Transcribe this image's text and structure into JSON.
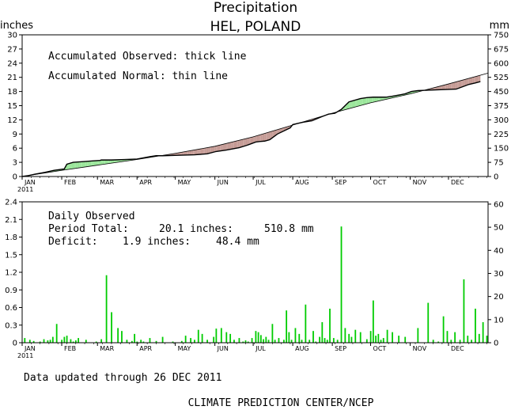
{
  "title": "Precipitation",
  "subtitle": "HEL, POLAND",
  "footer": {
    "updated": "Data updated through 26 DEC 2011",
    "credit": "CLIMATE PREDICTION CENTER/NCEP"
  },
  "chart_data": [
    {
      "type": "area",
      "title": "Precipitation",
      "subtitle": "HEL, POLAND",
      "ylabel_left": "inches",
      "ylabel_right": "mm",
      "ylim_inches": [
        0,
        30
      ],
      "yticks_inches": [
        "0",
        "3",
        "6",
        "9",
        "12",
        "15",
        "18",
        "21",
        "24",
        "27",
        "30"
      ],
      "ylim_mm": [
        0,
        750
      ],
      "yticks_mm": [
        "0",
        "75",
        "150",
        "225",
        "300",
        "375",
        "450",
        "525",
        "600",
        "675",
        "750"
      ],
      "xlim_days": [
        0,
        365
      ],
      "months": [
        "JAN",
        "FEB",
        "MAR",
        "APR",
        "MAY",
        "JUN",
        "JUL",
        "AUG",
        "SEP",
        "OCT",
        "NOV",
        "DEC"
      ],
      "year_label": "2011",
      "annotations": [
        "Accumulated Observed: thick line",
        "Accumulated Normal: thin line"
      ],
      "surplus_color": "#99e699",
      "deficit_color": "#c49a94",
      "series": [
        {
          "name": "Accumulated Observed",
          "x": [
            0,
            5,
            10,
            18,
            25,
            33,
            35,
            40,
            50,
            55,
            61,
            62,
            70,
            80,
            90,
            100,
            105,
            110,
            122,
            135,
            145,
            152,
            160,
            170,
            176,
            178,
            183,
            186,
            190,
            194,
            200,
            210,
            212,
            220,
            227,
            235,
            240,
            245,
            250,
            256,
            265,
            270,
            275,
            285,
            290,
            300,
            305,
            310,
            320,
            330,
            340,
            345,
            350,
            355,
            359
          ],
          "values": [
            0,
            0.2,
            0.5,
            0.9,
            1.3,
            1.6,
            2.6,
            3.0,
            3.2,
            3.3,
            3.4,
            3.5,
            3.5,
            3.6,
            3.7,
            4.2,
            4.4,
            4.4,
            4.5,
            4.6,
            4.8,
            5.3,
            5.6,
            6.1,
            6.6,
            6.8,
            7.3,
            7.4,
            7.5,
            7.8,
            9.0,
            10.3,
            11.0,
            11.5,
            11.8,
            12.7,
            13.2,
            13.4,
            14.2,
            15.8,
            16.5,
            16.7,
            16.8,
            16.8,
            17.0,
            17.5,
            18.0,
            18.2,
            18.3,
            18.4,
            18.5,
            19.0,
            19.5,
            19.8,
            20.1
          ]
        },
        {
          "name": "Accumulated Normal",
          "x": [
            0,
            31,
            59,
            90,
            120,
            151,
            181,
            212,
            243,
            273,
            304,
            334,
            365
          ],
          "values": [
            0,
            1.3,
            2.4,
            3.6,
            4.9,
            6.4,
            8.4,
            10.9,
            13.4,
            15.6,
            17.5,
            19.6,
            21.9
          ]
        }
      ]
    },
    {
      "type": "bar",
      "ylabel_left": "",
      "ylabel_right": "",
      "ylim_inches": [
        0,
        2.4
      ],
      "yticks_inches": [
        "0",
        "0.3",
        "0.6",
        "0.9",
        "1.2",
        "1.5",
        "1.8",
        "2.1",
        "2.4"
      ],
      "ylim_mm": [
        0,
        61
      ],
      "yticks_mm": [
        "0",
        "10",
        "20",
        "30",
        "40",
        "50",
        "60"
      ],
      "xlim_days": [
        0,
        365
      ],
      "months": [
        "JAN",
        "FEB",
        "MAR",
        "APR",
        "MAY",
        "JUN",
        "JUL",
        "AUG",
        "SEP",
        "OCT",
        "NOV",
        "DEC"
      ],
      "year_label": "2011",
      "bar_color": "#00cc00",
      "legend_title": "Daily Observed",
      "period_total_label": "Period Total:",
      "period_total_inches": "20.1 inches:",
      "period_total_mm": "510.8 mm",
      "deficit_label": "Deficit:",
      "deficit_inches": "1.9 inches:",
      "deficit_mm": "48.4 mm",
      "days": [
        2,
        6,
        9,
        14,
        17,
        20,
        22,
        24,
        27,
        31,
        33,
        35,
        38,
        40,
        42,
        44,
        50,
        58,
        62,
        66,
        70,
        75,
        78,
        82,
        86,
        88,
        90,
        93,
        95,
        100,
        105,
        110,
        118,
        125,
        128,
        132,
        135,
        138,
        141,
        145,
        150,
        152,
        156,
        160,
        163,
        166,
        170,
        173,
        175,
        177,
        180,
        183,
        185,
        187,
        189,
        191,
        193,
        196,
        198,
        201,
        205,
        207,
        209,
        211,
        214,
        217,
        219,
        222,
        225,
        228,
        230,
        233,
        235,
        237,
        239,
        241,
        244,
        247,
        250,
        253,
        256,
        258,
        261,
        265,
        270,
        273,
        275,
        277,
        279,
        281,
        283,
        286,
        290,
        295,
        300,
        310,
        318,
        322,
        326,
        330,
        333,
        336,
        339,
        343,
        346,
        349,
        352,
        355,
        358,
        361,
        364
      ],
      "values": [
        0.08,
        0.05,
        0.03,
        0.02,
        0.06,
        0.04,
        0.05,
        0.1,
        0.32,
        0.05,
        0.1,
        0.12,
        0.06,
        0.02,
        0.04,
        0.08,
        0.05,
        0.02,
        0.06,
        1.15,
        0.52,
        0.25,
        0.2,
        0.05,
        0.03,
        0.15,
        0.02,
        0.05,
        0.02,
        0.08,
        0.03,
        0.1,
        0.02,
        0.03,
        0.12,
        0.08,
        0.05,
        0.22,
        0.15,
        0.05,
        0.1,
        0.24,
        0.25,
        0.18,
        0.15,
        0.05,
        0.08,
        0.02,
        0.04,
        0.02,
        0.08,
        0.2,
        0.18,
        0.13,
        0.06,
        0.1,
        0.05,
        0.32,
        0.05,
        0.08,
        0.05,
        0.55,
        0.18,
        0.05,
        0.25,
        0.15,
        0.05,
        0.65,
        0.05,
        0.2,
        0.02,
        0.1,
        0.35,
        0.08,
        0.05,
        0.58,
        0.08,
        0.05,
        1.98,
        0.25,
        0.15,
        0.1,
        0.22,
        0.18,
        0.06,
        0.2,
        0.72,
        0.12,
        0.15,
        0.05,
        0.08,
        0.22,
        0.18,
        0.12,
        0.1,
        0.25,
        0.68,
        0.05,
        0.02,
        0.45,
        0.2,
        0.05,
        0.18,
        0.05,
        1.08,
        0.12,
        0.05,
        0.58,
        0.15,
        0.35,
        0.12
      ]
    }
  ]
}
